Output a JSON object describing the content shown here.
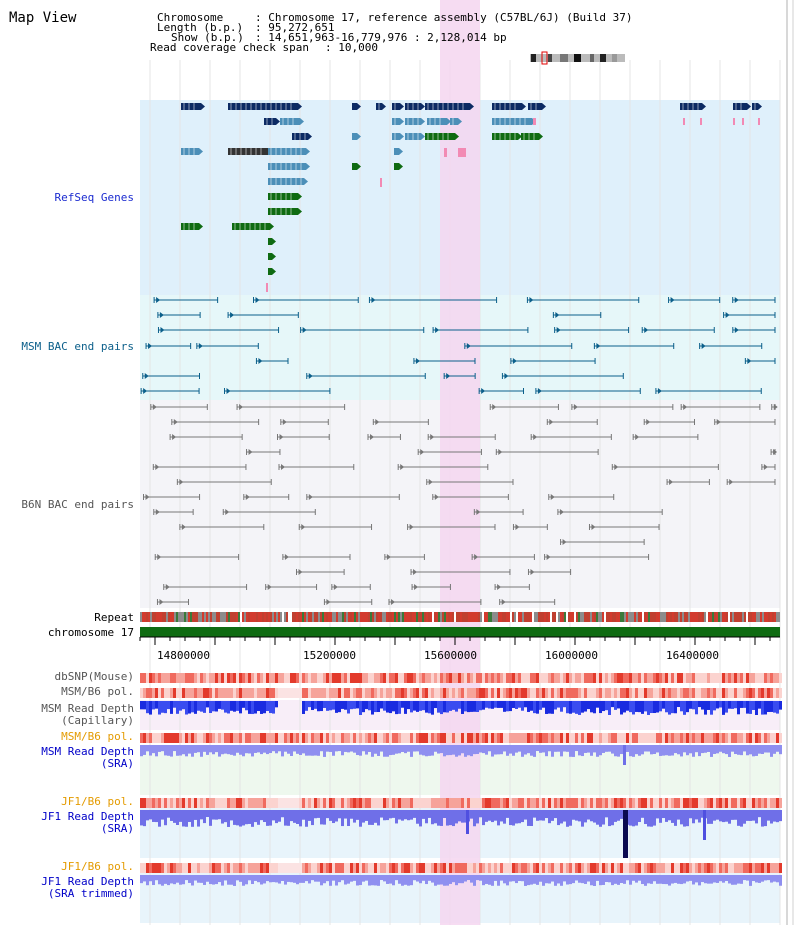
{
  "title": "Map View",
  "info": {
    "chromosome_key": "Chromosome",
    "chromosome_val": ": Chromosome 17, reference assembly (C57BL/6J) (Build 37)",
    "length_key": "Length (b.p.)",
    "length_val": ": 95,272,651",
    "show_key": "Show (b.p.)",
    "show_val": ": 14,651,963-16,779,976 : 2,128,014 bp",
    "coverage_key": "Read coverage check span",
    "coverage_val": ": 10,000"
  },
  "tracks": {
    "refseq": "RefSeq Genes",
    "msm_bac": "MSM BAC end pairs",
    "b6n_bac": "B6N BAC end pairs",
    "repeat": "Repeat",
    "chromosome": "chromosome 17",
    "dbsnp": "dbSNP(Mouse)",
    "msm_b6_pol": "MSM/B6 pol.",
    "msm_read_depth_cap_1": "MSM Read Depth",
    "msm_read_depth_cap_2": "(Capillary)",
    "msm_b6_pol_2": "MSM/B6 pol.",
    "msm_read_depth_sra_1": "MSM Read Depth",
    "msm_read_depth_sra_2": "(SRA)",
    "jf1_b6_pol": "JF1/B6 pol.",
    "jf1_read_depth_sra_1": "JF1 Read Depth",
    "jf1_read_depth_sra_2": "(SRA)",
    "jf1_b6_pol_2": "JF1/B6 pol.",
    "jf1_read_depth_trim_1": "JF1 Read Depth",
    "jf1_read_depth_trim_2": "(SRA trimmed)"
  },
  "axis_ticks": [
    "14800000",
    "15200000",
    "15600000",
    "16000000",
    "16400000"
  ],
  "colors": {
    "refseq_bg": "#dff0fb",
    "msm_bg": "#e6f7f9",
    "b6n_bg": "#f4f4f8",
    "highlight": "#f5d6f0",
    "refseq_label": "#1b2bd0",
    "msm_label": "#0b5f8a",
    "b6n_label": "#555555",
    "orange_label": "#e49b00",
    "blue_label": "#0000c8",
    "dark_blue_gene": "#0c2a63",
    "mid_blue_gene": "#4c8fb8",
    "green_gene": "#0f6b12",
    "pink_gene": "#f28ab4",
    "chromosome_bar": "#0f6b12"
  }
}
